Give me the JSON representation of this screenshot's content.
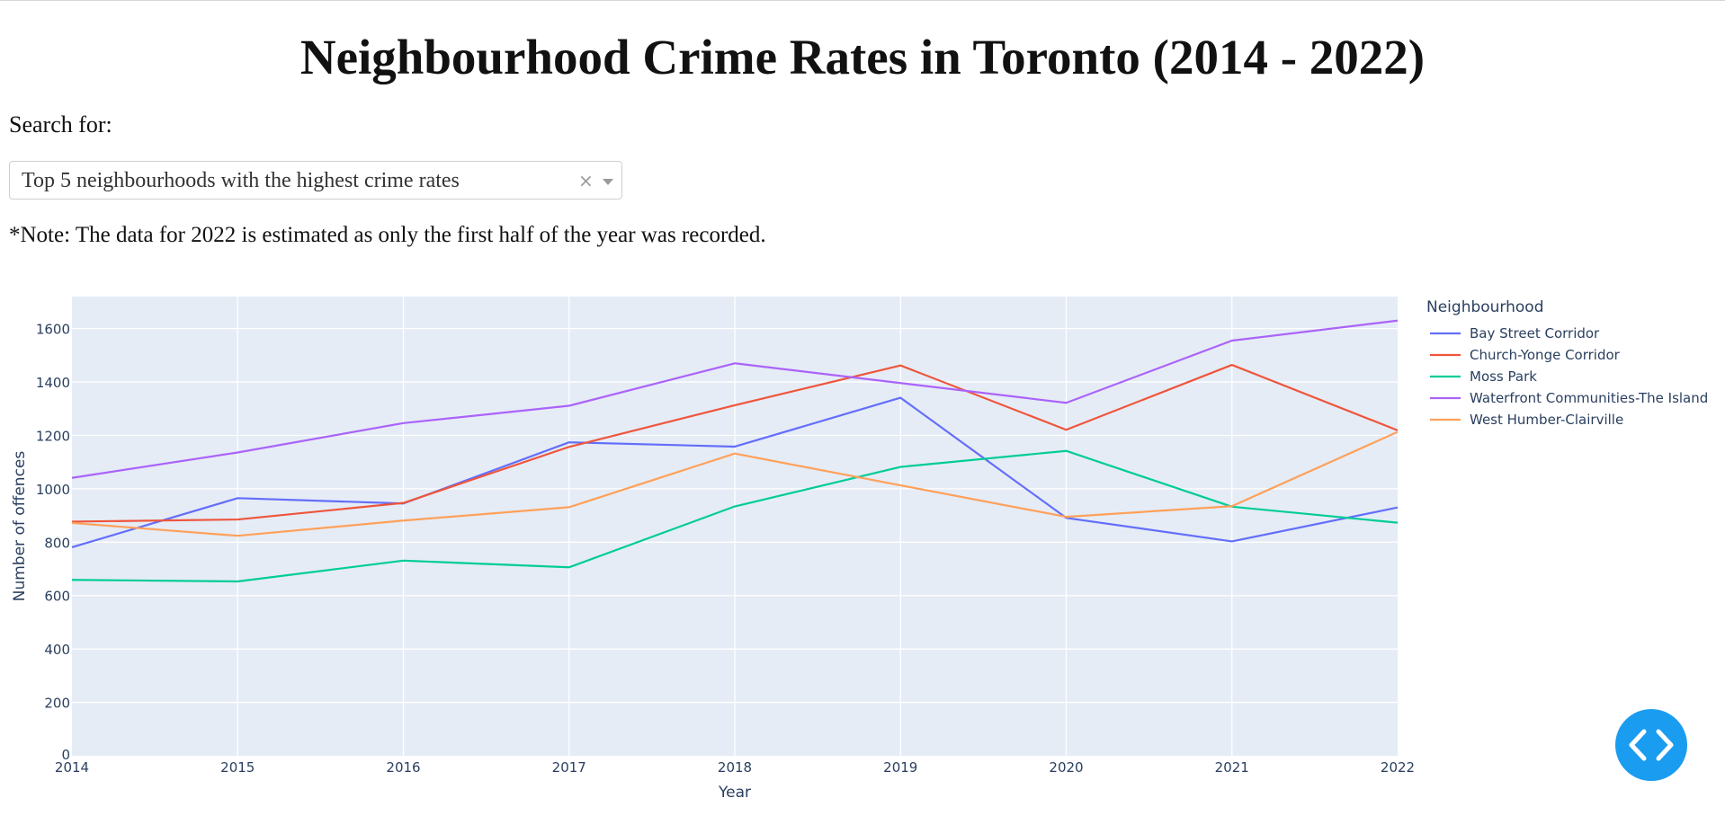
{
  "page": {
    "title": "Neighbourhood Crime Rates in Toronto (2014 - 2022)",
    "search_label": "Search for:",
    "dropdown": {
      "selected": "Top 5 neighbourhoods with the highest crime rates",
      "clear_symbol": "×"
    },
    "note": "*Note: The data for 2022 is estimated as only the first half of the year was recorded."
  },
  "chart_data": {
    "type": "line",
    "xlabel": "Year",
    "ylabel": "Number of offences",
    "legend_title": "Neighbourhood",
    "legend_position": "right",
    "grid": true,
    "background": "#e5ecf6",
    "xlim": [
      2014,
      2022
    ],
    "ylim": [
      0,
      1720
    ],
    "x_ticks": [
      "2014",
      "2015",
      "2016",
      "2017",
      "2018",
      "2019",
      "2020",
      "2021",
      "2022"
    ],
    "y_ticks": [
      "0",
      "200",
      "400",
      "600",
      "800",
      "1000",
      "1200",
      "1400",
      "1600"
    ],
    "x": [
      2014,
      2015,
      2016,
      2017,
      2018,
      2019,
      2020,
      2021,
      2022
    ],
    "series": [
      {
        "name": "Bay Street Corridor",
        "color": "#636efa",
        "values": [
          781,
          965,
          945,
          1174,
          1158,
          1341,
          891,
          803,
          930
        ]
      },
      {
        "name": "Church-Yonge Corridor",
        "color": "#ef553b",
        "values": [
          877,
          885,
          947,
          1157,
          1313,
          1462,
          1221,
          1464,
          1219
        ]
      },
      {
        "name": "Moss Park",
        "color": "#00cc96",
        "values": [
          659,
          653,
          731,
          706,
          934,
          1082,
          1142,
          933,
          873
        ]
      },
      {
        "name": "Waterfront Communities-The Island",
        "color": "#ab63fa",
        "values": [
          1041,
          1136,
          1246,
          1311,
          1470,
          1396,
          1322,
          1555,
          1630
        ]
      },
      {
        "name": "West Humber-Clairville",
        "color": "#ffa15a",
        "values": [
          872,
          824,
          881,
          931,
          1132,
          1013,
          895,
          935,
          1213
        ]
      }
    ]
  },
  "fab": {
    "icon": "code-brackets-icon"
  }
}
